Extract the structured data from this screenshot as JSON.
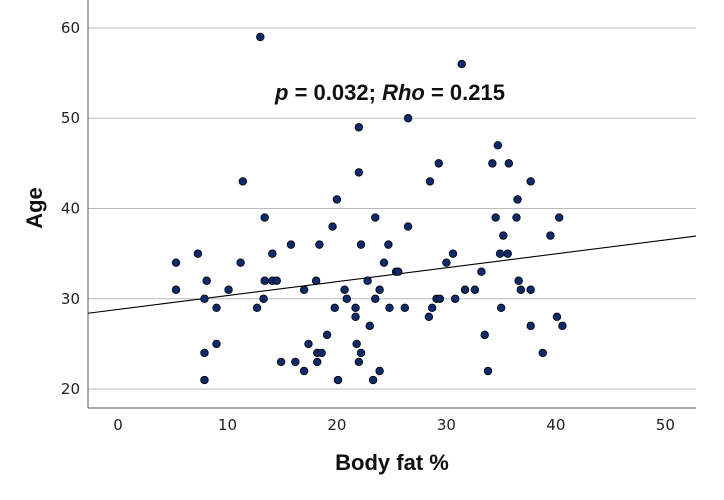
{
  "chart_data": {
    "type": "scatter",
    "title": "",
    "xlabel": "Body fat %",
    "ylabel": "Age",
    "xlim": [
      -2.74,
      52.8
    ],
    "ylim": [
      17.9,
      63.1
    ],
    "xticks": [
      0,
      10,
      20,
      30,
      40,
      50
    ],
    "yticks": [
      20,
      30,
      40,
      50,
      60
    ],
    "grid": "horizontal",
    "marker_color": "#0d2a6b",
    "fit_line": {
      "slope": 0.154,
      "intercept": 28.82,
      "color": "#000000"
    },
    "annotation": {
      "p_label": "p",
      "p_value": " = 0.032; ",
      "rho_label": "Rho",
      "rho_value": " = 0.215"
    },
    "points": [
      [
        5.3,
        34
      ],
      [
        5.3,
        31
      ],
      [
        7.3,
        35
      ],
      [
        8.1,
        32
      ],
      [
        7.9,
        30
      ],
      [
        9.0,
        29
      ],
      [
        7.9,
        24
      ],
      [
        7.9,
        21
      ],
      [
        9.0,
        25
      ],
      [
        10.1,
        31
      ],
      [
        11.2,
        34
      ],
      [
        11.4,
        43
      ],
      [
        12.7,
        29
      ],
      [
        13.0,
        59
      ],
      [
        13.4,
        39
      ],
      [
        13.4,
        32
      ],
      [
        13.3,
        30
      ],
      [
        14.1,
        35
      ],
      [
        14.1,
        32
      ],
      [
        14.5,
        32
      ],
      [
        14.9,
        23
      ],
      [
        15.8,
        36
      ],
      [
        16.2,
        23
      ],
      [
        17.0,
        31
      ],
      [
        17.0,
        22
      ],
      [
        17.4,
        25
      ],
      [
        18.1,
        32
      ],
      [
        18.4,
        36
      ],
      [
        18.2,
        24
      ],
      [
        18.6,
        24
      ],
      [
        18.2,
        23
      ],
      [
        19.1,
        26
      ],
      [
        19.6,
        38
      ],
      [
        20.0,
        41
      ],
      [
        19.8,
        29
      ],
      [
        20.1,
        21
      ],
      [
        20.7,
        31
      ],
      [
        20.9,
        30
      ],
      [
        21.7,
        29
      ],
      [
        21.7,
        28
      ],
      [
        21.8,
        25
      ],
      [
        22.0,
        49
      ],
      [
        22.0,
        44
      ],
      [
        22.2,
        24
      ],
      [
        22.0,
        23
      ],
      [
        22.2,
        36
      ],
      [
        22.8,
        32
      ],
      [
        23.0,
        27
      ],
      [
        23.3,
        21
      ],
      [
        23.5,
        39
      ],
      [
        23.5,
        30
      ],
      [
        23.9,
        22
      ],
      [
        23.9,
        31
      ],
      [
        24.3,
        34
      ],
      [
        24.7,
        36
      ],
      [
        24.8,
        29
      ],
      [
        25.4,
        33
      ],
      [
        25.6,
        33
      ],
      [
        26.5,
        50
      ],
      [
        26.5,
        38
      ],
      [
        26.2,
        29
      ],
      [
        28.4,
        28
      ],
      [
        28.7,
        29
      ],
      [
        28.5,
        43
      ],
      [
        29.1,
        30
      ],
      [
        29.4,
        30
      ],
      [
        29.3,
        45
      ],
      [
        30.0,
        34
      ],
      [
        30.6,
        35
      ],
      [
        30.8,
        30
      ],
      [
        31.4,
        56
      ],
      [
        31.7,
        31
      ],
      [
        32.6,
        31
      ],
      [
        33.2,
        33
      ],
      [
        33.5,
        26
      ],
      [
        33.8,
        22
      ],
      [
        34.2,
        45
      ],
      [
        34.5,
        39
      ],
      [
        34.7,
        47
      ],
      [
        35.7,
        45
      ],
      [
        35.2,
        37
      ],
      [
        34.9,
        35
      ],
      [
        35.6,
        35
      ],
      [
        35.0,
        29
      ],
      [
        36.4,
        39
      ],
      [
        36.5,
        41
      ],
      [
        36.6,
        32
      ],
      [
        36.8,
        31
      ],
      [
        37.7,
        43
      ],
      [
        37.7,
        31
      ],
      [
        37.7,
        27
      ],
      [
        38.8,
        24
      ],
      [
        39.5,
        37
      ],
      [
        40.3,
        39
      ],
      [
        40.1,
        28
      ],
      [
        40.6,
        27
      ]
    ]
  }
}
